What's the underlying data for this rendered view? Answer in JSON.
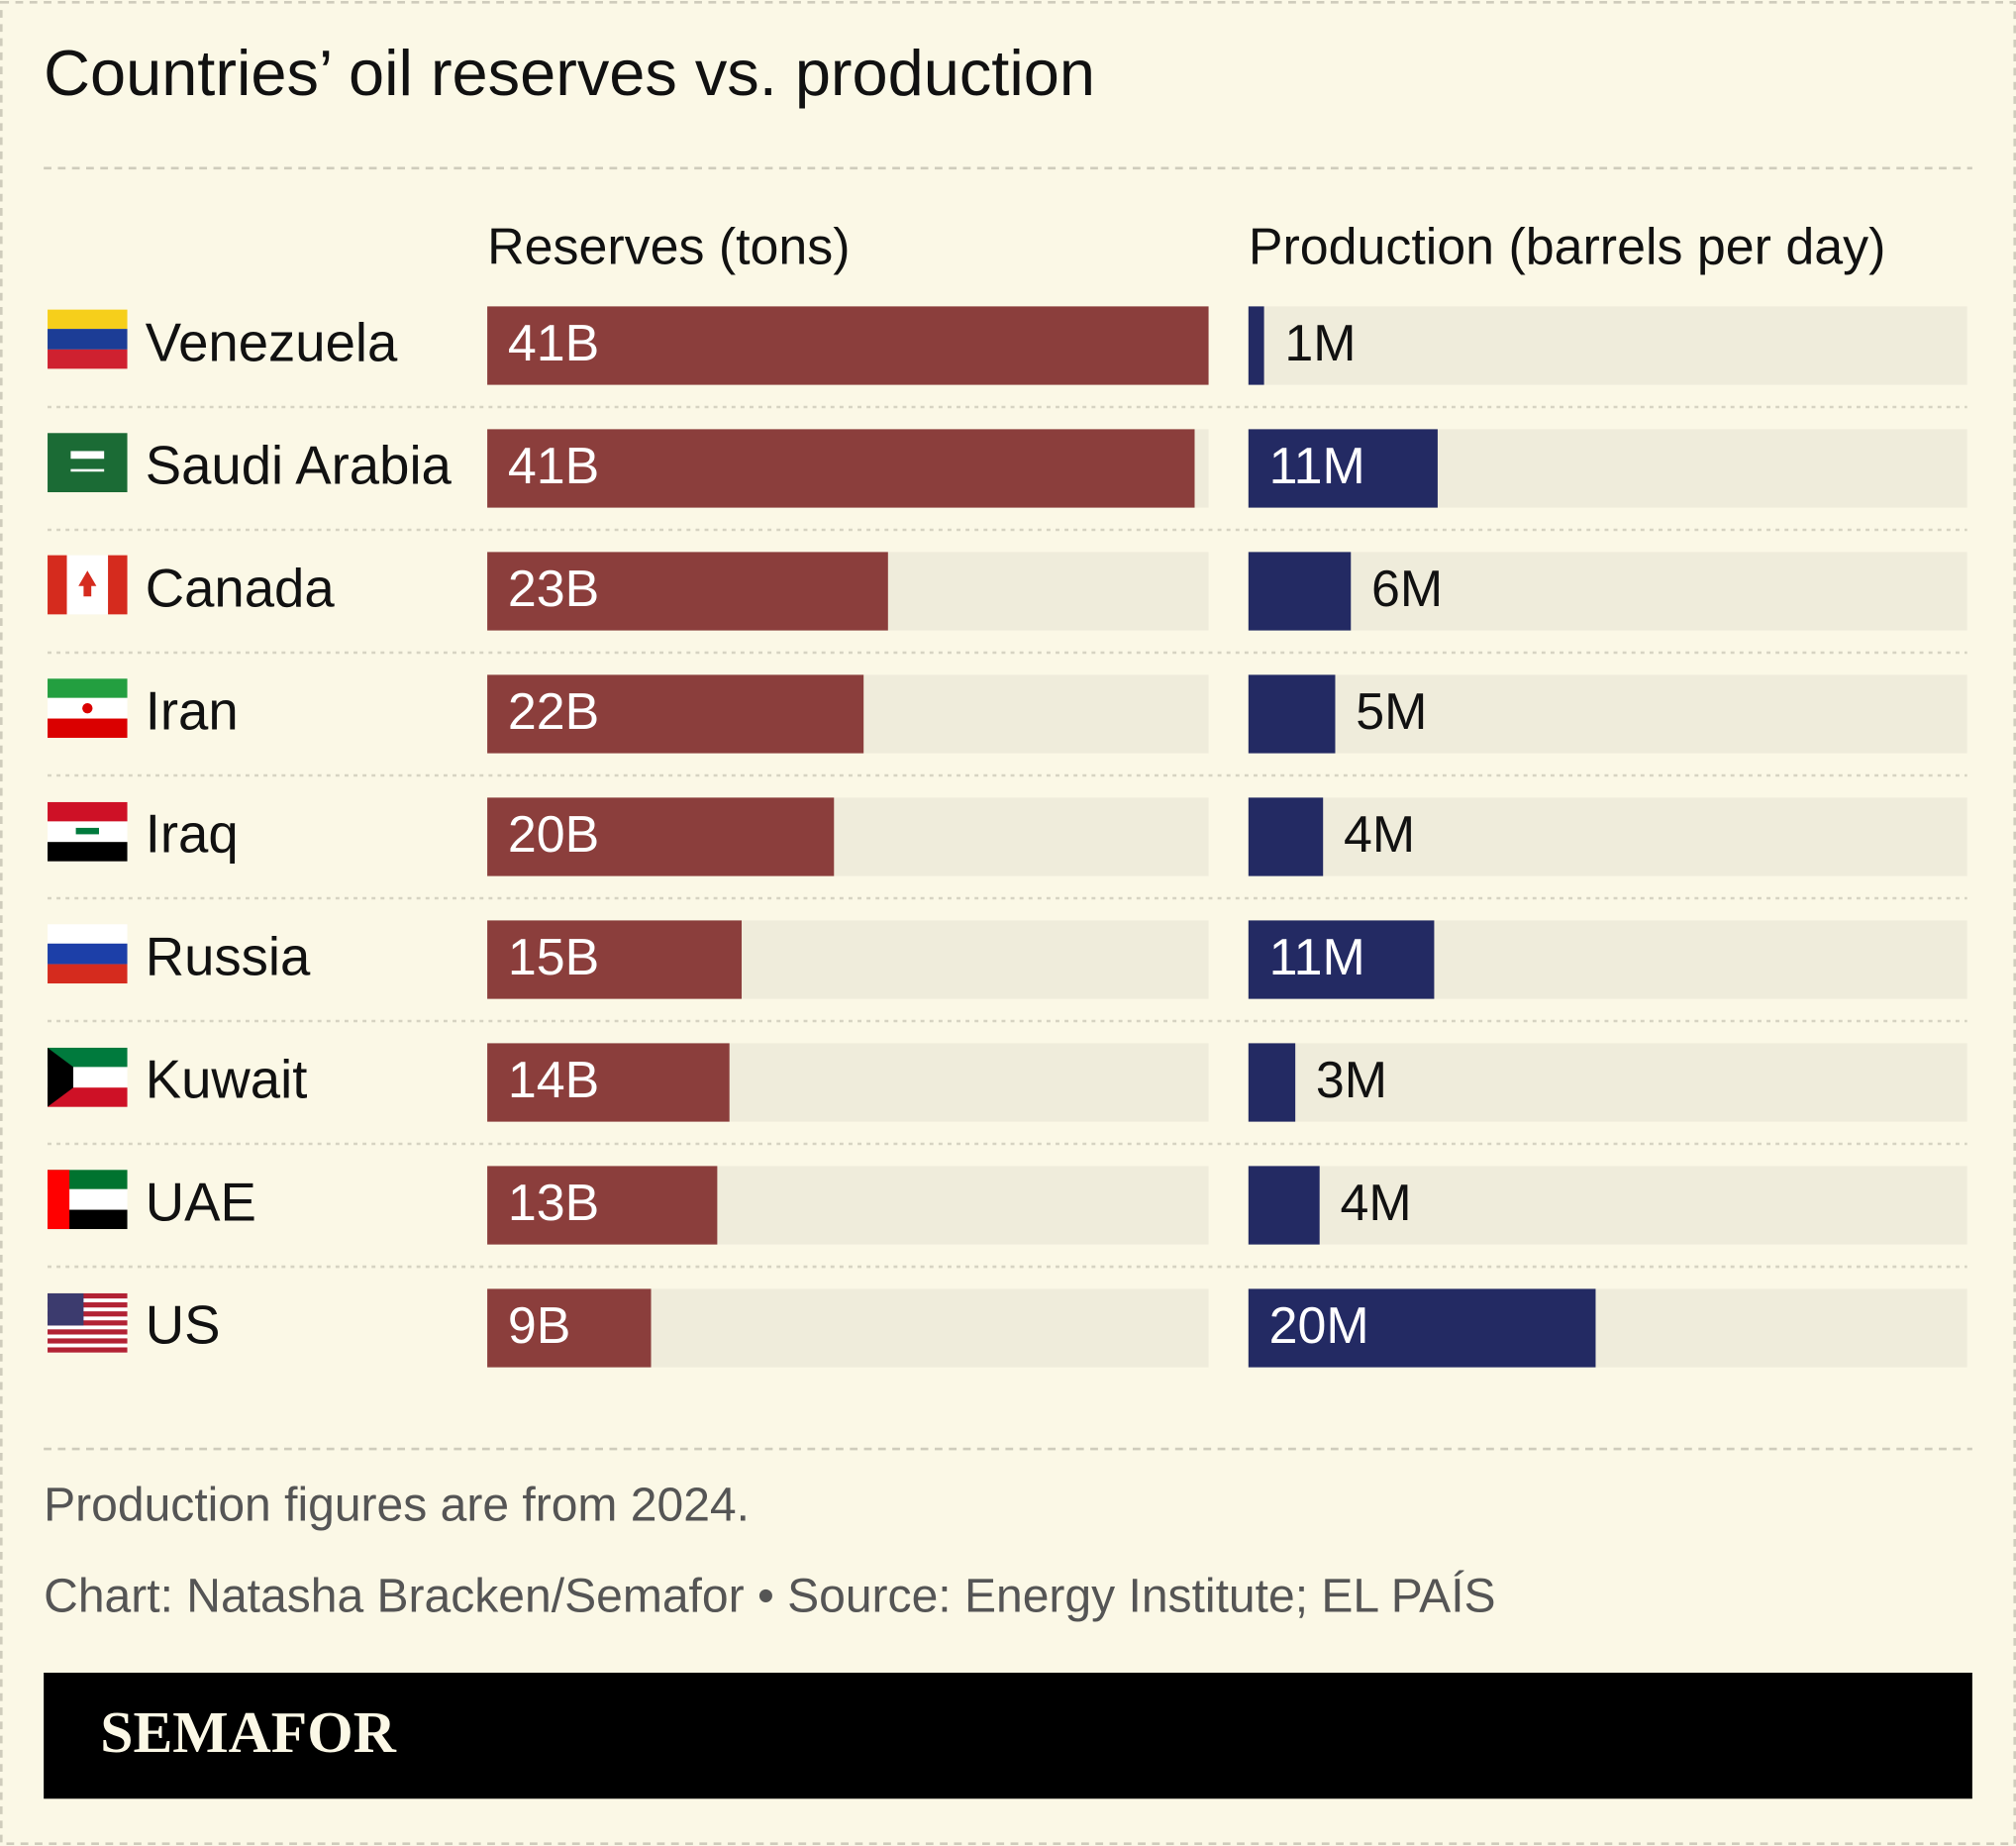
{
  "chart_data": {
    "type": "bar",
    "orientation": "horizontal",
    "title": "Countries’ oil reserves vs. production",
    "categories": [
      "Venezuela",
      "Saudi Arabia",
      "Canada",
      "Iran",
      "Iraq",
      "Russia",
      "Kuwait",
      "UAE",
      "US"
    ],
    "series": [
      {
        "name": "Reserves (tons)",
        "color": "#8b3e3c",
        "values": [
          41.4,
          40.6,
          23.0,
          21.6,
          19.9,
          14.6,
          13.9,
          13.2,
          9.4
        ],
        "value_labels": [
          "41B",
          "41B",
          "23B",
          "22B",
          "20B",
          "15B",
          "14B",
          "13B",
          "9B"
        ]
      },
      {
        "name": "Production (barrels per day)",
        "color": "#232a63",
        "values": [
          0.9,
          10.9,
          5.9,
          5.0,
          4.3,
          10.7,
          2.7,
          4.1,
          20.0
        ],
        "value_labels": [
          "1M",
          "11M",
          "6M",
          "5M",
          "4M",
          "11M",
          "3M",
          "4M",
          "20M"
        ]
      }
    ],
    "xlim": [
      0,
      41.4
    ]
  },
  "footer": {
    "note": "Production figures are from 2024.",
    "credit": "Chart: Natasha Bracken/Semafor • Source: Energy Institute; EL PAÍS",
    "brand": "SEMAFOR"
  }
}
